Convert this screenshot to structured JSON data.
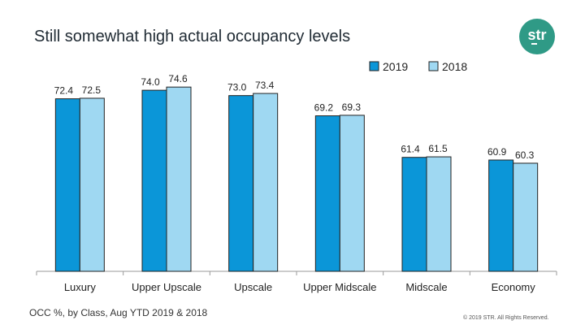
{
  "page": {
    "title": "Still somewhat high actual occupancy levels",
    "footnote": "OCC %, by Class, Aug YTD 2019 & 2018",
    "copyright": "© 2019 STR. All Rights Reserved.",
    "logo_text": "str",
    "logo_color": "#2f9a86"
  },
  "chart_data": {
    "type": "bar",
    "categories": [
      "Luxury",
      "Upper Upscale",
      "Upscale",
      "Upper Midscale",
      "Midscale",
      "Economy"
    ],
    "series": [
      {
        "name": "2019",
        "values": [
          72.4,
          74.0,
          73.0,
          69.2,
          61.4,
          60.9
        ],
        "labels": [
          "72.4",
          "74.0",
          "73.0",
          "69.2",
          "61.4",
          "60.9"
        ],
        "color": "#0b96d8"
      },
      {
        "name": "2018",
        "values": [
          72.5,
          74.6,
          73.4,
          69.3,
          61.5,
          60.3
        ],
        "labels": [
          "72.5",
          "74.6",
          "73.4",
          "69.3",
          "61.5",
          "60.3"
        ],
        "color": "#9fd8f2"
      }
    ],
    "ylim": [
      40,
      76
    ],
    "grid": false,
    "legend": "top-right",
    "xlabel": "",
    "ylabel": ""
  }
}
